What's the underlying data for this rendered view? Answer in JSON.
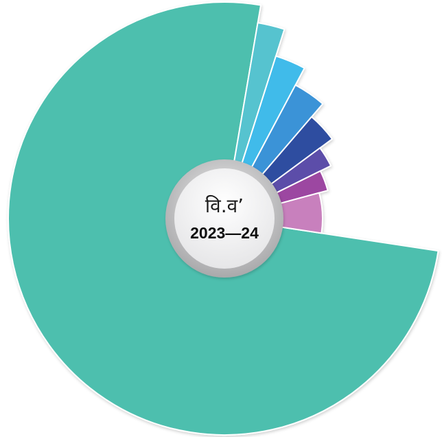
{
  "chart_data": {
    "type": "pie",
    "values": [
      75.3,
      2.2,
      2.9,
      3.5,
      3.6,
      2.8,
      3.1,
      6.6
    ],
    "colors": [
      "#4EBFAE",
      "#57C3CF",
      "#3FBBEA",
      "#3A93D7",
      "#2F4EA0",
      "#5B4DA9",
      "#9C46A1",
      "#C880BD"
    ],
    "center_text": [
      "वि.व’",
      "2023—24"
    ]
  }
}
